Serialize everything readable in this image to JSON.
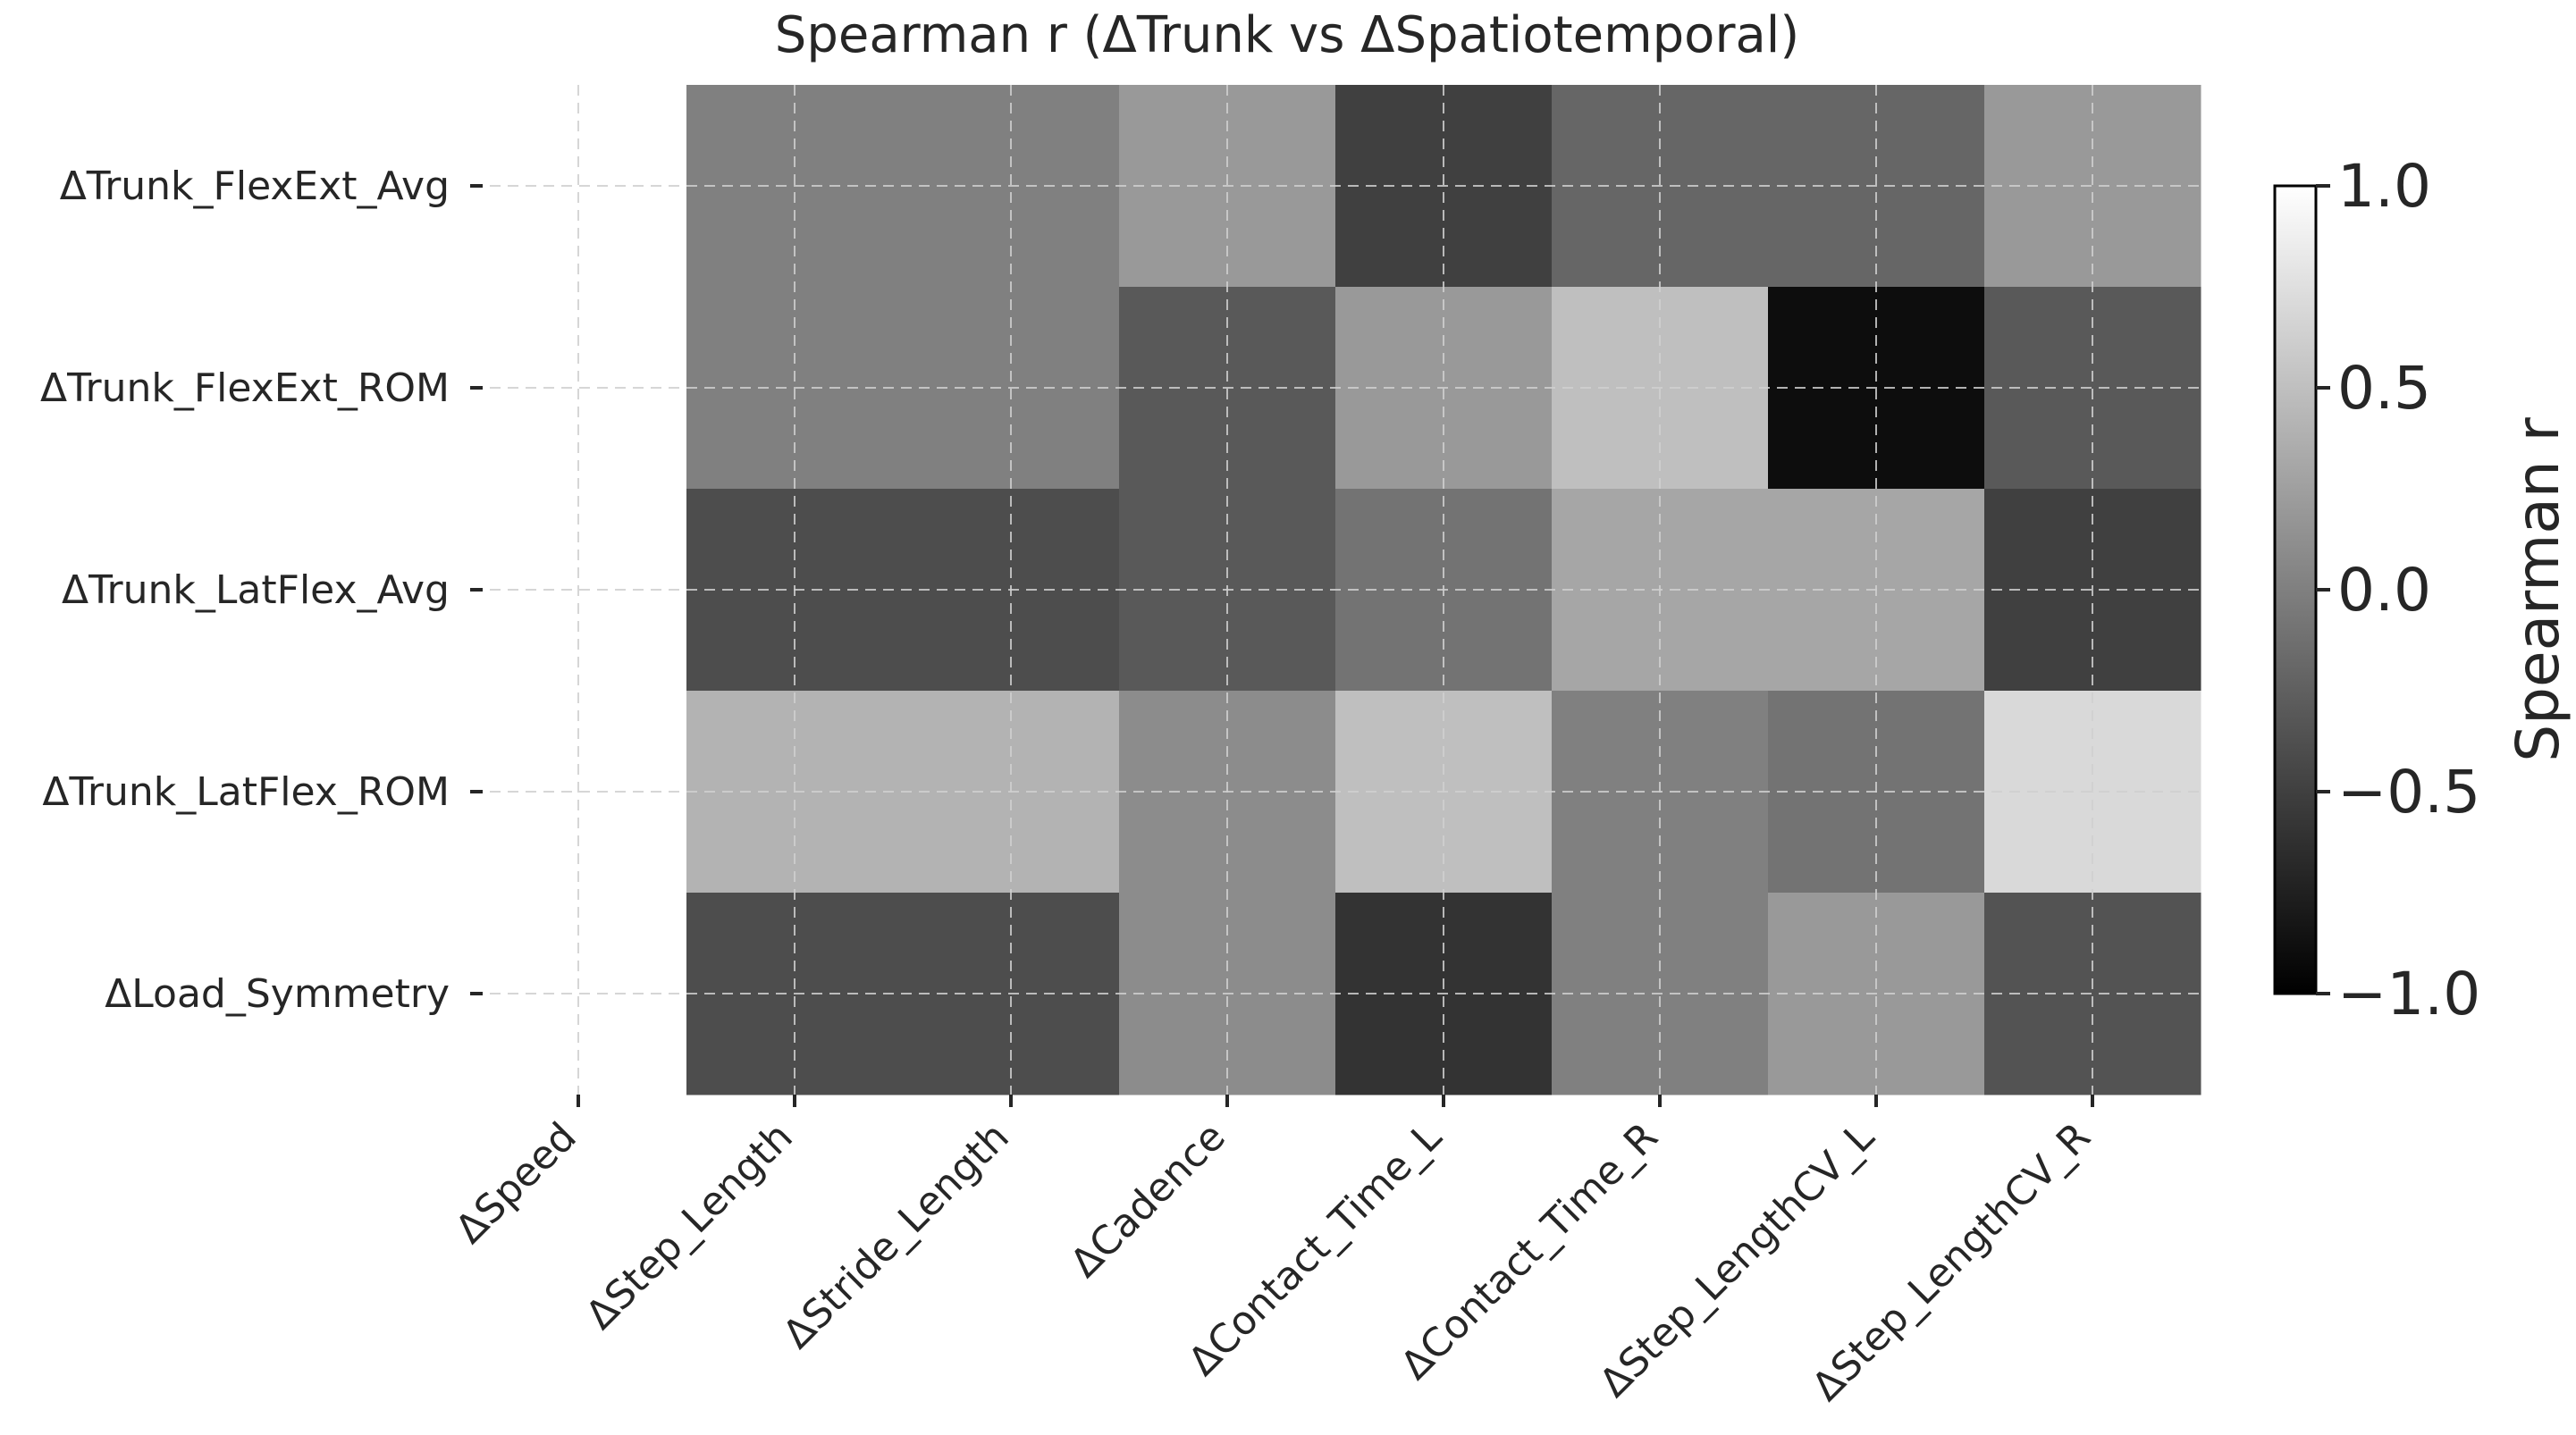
{
  "chart_data": {
    "type": "heatmap",
    "title": "Spearman r (ΔTrunk vs ΔSpatiotemporal)",
    "columns": [
      "ΔSpeed",
      "ΔStep_Length",
      "ΔStride_Length",
      "ΔCadence",
      "ΔContact_Time_L",
      "ΔContact_Time_R",
      "ΔStep_LengthCV_L",
      "ΔStep_LengthCV_R"
    ],
    "rows": [
      "ΔTrunk_FlexExt_Avg",
      "ΔTrunk_FlexExt_ROM",
      "ΔTrunk_LatFlex_Avg",
      "ΔTrunk_LatFlex_ROM",
      "ΔLoad_Symmetry"
    ],
    "values": [
      [
        null,
        0.0,
        0.0,
        0.2,
        -0.5,
        -0.2,
        -0.2,
        0.2
      ],
      [
        null,
        0.0,
        0.0,
        -0.3,
        0.2,
        0.5,
        -0.9,
        -0.3
      ],
      [
        null,
        -0.4,
        -0.4,
        -0.3,
        -0.1,
        0.3,
        0.3,
        -0.5
      ],
      [
        null,
        0.4,
        0.4,
        0.1,
        0.5,
        0.0,
        -0.1,
        0.7
      ],
      [
        null,
        -0.4,
        -0.4,
        0.1,
        -0.6,
        0.0,
        0.2,
        -0.35
      ]
    ],
    "colormap": "gray",
    "vmin": -1.0,
    "vmax": 1.0,
    "colorbar": {
      "label": "Spearman r",
      "ticks": [
        "1.0",
        "0.5",
        "0.0",
        "−0.5",
        "−1.0"
      ]
    },
    "grid": true
  }
}
